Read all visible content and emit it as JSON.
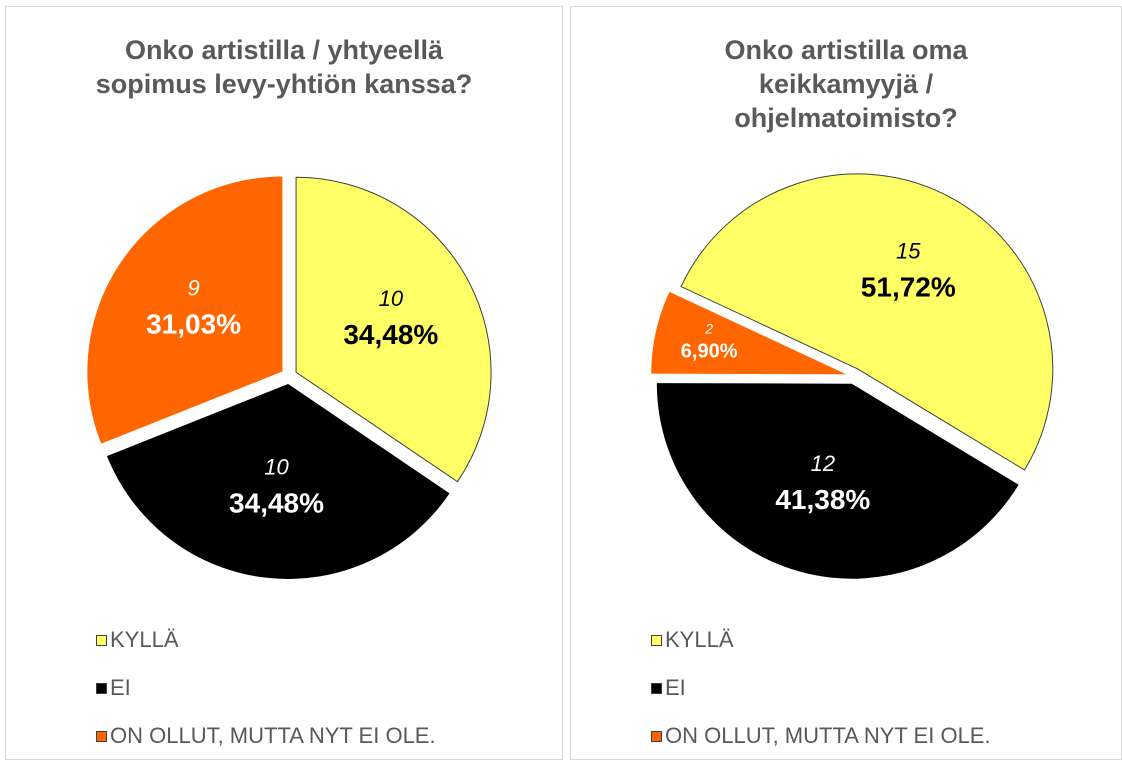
{
  "chart_data": [
    {
      "type": "pie",
      "title": "Onko artistilla / yhtyeellä sopimus levy-yhtiön kanssa?",
      "categories": [
        "KYLLÄ",
        "EI",
        "ON OLLUT, MUTTA NYT EI OLE."
      ],
      "values": [
        10,
        10,
        9
      ],
      "percentages": [
        34.48,
        34.48,
        31.03
      ],
      "percentage_labels": [
        "34,48%",
        "34,48%",
        "31,03%"
      ],
      "colors": [
        "#ffff66",
        "#000000",
        "#ff6600"
      ],
      "legend": "bottom"
    },
    {
      "type": "pie",
      "title": "Onko artistilla oma keikkamyyjä / ohjelmatoimisto?",
      "categories": [
        "KYLLÄ",
        "EI",
        "ON OLLUT, MUTTA NYT EI OLE."
      ],
      "values": [
        15,
        12,
        2
      ],
      "percentages": [
        51.72,
        41.38,
        6.9
      ],
      "percentage_labels": [
        "51,72%",
        "41,38%",
        "6,90%"
      ],
      "colors": [
        "#ffff66",
        "#000000",
        "#ff6600"
      ],
      "legend": "bottom"
    }
  ]
}
